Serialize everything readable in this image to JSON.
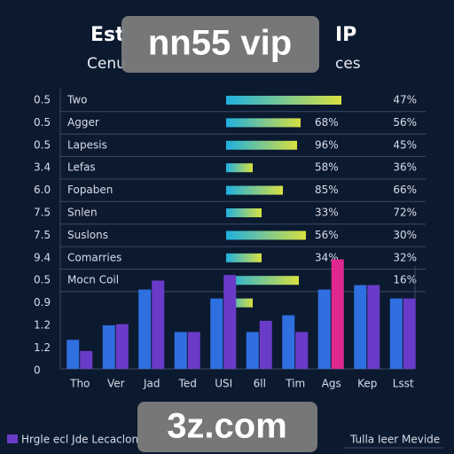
{
  "header": {
    "title": [
      "Est",
      "IP"
    ],
    "subtitle": [
      "Cenu",
      "ces"
    ]
  },
  "watermarks": [
    "nn55 vip",
    "3z.com"
  ],
  "row_numbers": [
    "0.5",
    "0.5",
    "0.5",
    "3.4",
    "6.0",
    "7.5",
    "7.5",
    "9.4",
    "0.5",
    "0.9",
    "1.2",
    "1.2",
    "0"
  ],
  "chart_data": [
    {
      "type": "bar_h",
      "categories": [
        "Two",
        "Agger",
        "Lapesis",
        "Lefas",
        "Fopaben",
        "Snlen",
        "Suslons",
        "Comarries",
        "Mocn Coil",
        null
      ],
      "values": [
        65,
        42,
        40,
        15,
        32,
        20,
        45,
        20,
        41,
        15
      ],
      "xlim": [
        0,
        100
      ],
      "colors": [
        "#1fb0e0",
        "#d8e040"
      ],
      "labels_a": [
        null,
        "68%",
        "96%",
        "58%",
        "85%",
        "33%",
        "56%",
        "34%",
        null,
        null
      ],
      "labels_b": [
        "47%",
        "56%",
        "45%",
        "36%",
        "66%",
        "72%",
        "30%",
        "32%",
        "16%",
        null
      ]
    },
    {
      "type": "bar",
      "categories": [
        "Tho",
        "Ver",
        "Jad",
        "Ted",
        "USI",
        "6ll",
        "Tim",
        "Ags",
        "Kep",
        "Lsst"
      ],
      "ylim": [
        0,
        100
      ],
      "series": [
        {
          "color": "#2f6fe0",
          "values": [
            26,
            39,
            71,
            33,
            63,
            33,
            48,
            71,
            75,
            63
          ]
        },
        {
          "color": "#6a3bc8",
          "colors": [
            "#6a3bc8",
            "#6a3bc8",
            "#6a3bc8",
            "#6a3bc8",
            "#6a3bc8",
            "#6a3bc8",
            "#6a3bc8",
            "#e02890",
            "#6a3bc8",
            "#6a3bc8"
          ],
          "values": [
            16,
            40,
            79,
            33,
            84,
            43,
            33,
            98,
            75,
            63
          ]
        }
      ]
    }
  ],
  "footer": {
    "legend": "Hrgle ecl Jde Lecaclon",
    "note": "Tulla Ieer Mevide"
  }
}
